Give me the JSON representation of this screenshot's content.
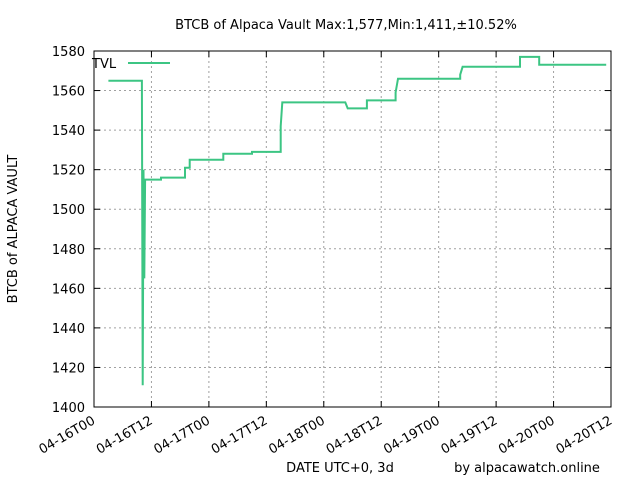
{
  "chart_data": {
    "type": "line",
    "title": "BTCB of Alpaca Vault Max:1,577,Min:1,411,±10.52%",
    "xlabel": "DATE UTC+0, 3d",
    "ylabel": "BTCB of ALPACA VAULT",
    "credit": "by alpacawatch.online",
    "legend_position": "top-left",
    "grid": true,
    "ylim": [
      1400,
      1580
    ],
    "y_ticks": [
      1400,
      1420,
      1440,
      1460,
      1480,
      1500,
      1520,
      1540,
      1560,
      1580
    ],
    "xlim": [
      "2022-04-16T00:00",
      "2022-04-20T12:00"
    ],
    "x_tick_labels": [
      "04-16T00",
      "04-16T12",
      "04-17T00",
      "04-17T12",
      "04-18T00",
      "04-18T12",
      "04-19T00",
      "04-19T12",
      "04-20T00",
      "04-20T12"
    ],
    "series": [
      {
        "name": "TVL",
        "color": "#3cc583",
        "points": [
          [
            "2022-04-16T03:00",
            1565
          ],
          [
            "2022-04-16T10:00",
            1565
          ],
          [
            "2022-04-16T10:00",
            1563
          ],
          [
            "2022-04-16T10:10",
            1411
          ],
          [
            "2022-04-16T10:20",
            1520
          ],
          [
            "2022-04-16T10:30",
            1465
          ],
          [
            "2022-04-16T10:40",
            1515
          ],
          [
            "2022-04-16T14:00",
            1515
          ],
          [
            "2022-04-16T14:00",
            1516
          ],
          [
            "2022-04-16T19:00",
            1516
          ],
          [
            "2022-04-16T19:00",
            1521
          ],
          [
            "2022-04-16T20:00",
            1521
          ],
          [
            "2022-04-16T20:00",
            1525
          ],
          [
            "2022-04-17T03:00",
            1525
          ],
          [
            "2022-04-17T03:00",
            1528
          ],
          [
            "2022-04-17T09:00",
            1528
          ],
          [
            "2022-04-17T09:00",
            1529
          ],
          [
            "2022-04-17T15:00",
            1529
          ],
          [
            "2022-04-17T15:00",
            1542
          ],
          [
            "2022-04-17T15:20",
            1554
          ],
          [
            "2022-04-18T04:30",
            1554
          ],
          [
            "2022-04-18T05:00",
            1551
          ],
          [
            "2022-04-18T09:00",
            1551
          ],
          [
            "2022-04-18T09:00",
            1555
          ],
          [
            "2022-04-18T15:00",
            1555
          ],
          [
            "2022-04-18T15:00",
            1559
          ],
          [
            "2022-04-18T15:30",
            1566
          ],
          [
            "2022-04-19T04:30",
            1566
          ],
          [
            "2022-04-19T04:30",
            1568
          ],
          [
            "2022-04-19T05:00",
            1572
          ],
          [
            "2022-04-19T17:00",
            1572
          ],
          [
            "2022-04-19T17:00",
            1577
          ],
          [
            "2022-04-19T21:00",
            1577
          ],
          [
            "2022-04-19T21:00",
            1573
          ],
          [
            "2022-04-20T11:00",
            1573
          ]
        ]
      }
    ]
  }
}
